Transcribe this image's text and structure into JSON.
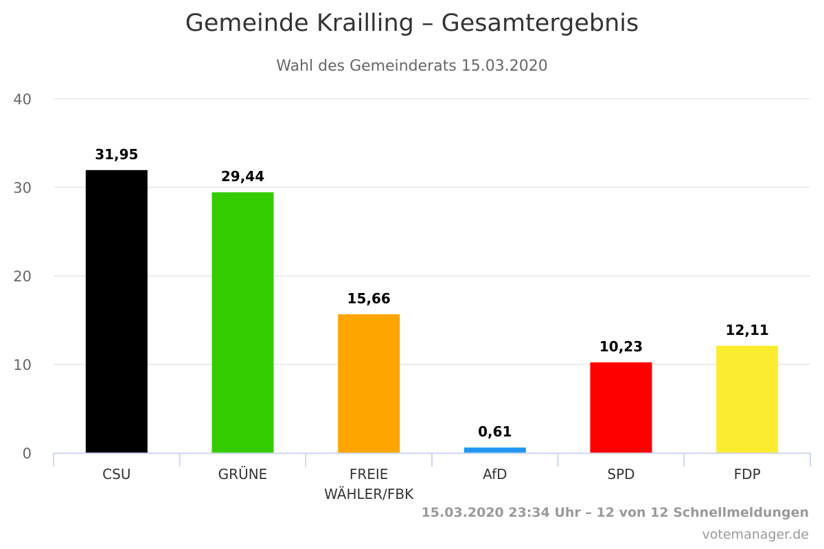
{
  "chart_data": {
    "type": "bar",
    "title": "Gemeinde Krailling – Gesamtergebnis",
    "subtitle": "Wahl des Gemeinderats 15.03.2020",
    "categories": [
      "CSU",
      "GRÜNE",
      "FREIE WÄHLER/FBK",
      "AfD",
      "SPD",
      "FDP"
    ],
    "category_lines": [
      [
        "CSU"
      ],
      [
        "GRÜNE"
      ],
      [
        "FREIE",
        "WÄHLER/FBK"
      ],
      [
        "AfD"
      ],
      [
        "SPD"
      ],
      [
        "FDP"
      ]
    ],
    "values": [
      31.95,
      29.44,
      15.66,
      0.61,
      10.23,
      12.11
    ],
    "value_labels": [
      "31,95",
      "29,44",
      "15,66",
      "0,61",
      "10,23",
      "12,11"
    ],
    "colors": [
      "#000000",
      "#33cc00",
      "#ffa500",
      "#2196f3",
      "#ff0000",
      "#fbec30"
    ],
    "ylim": [
      0,
      40
    ],
    "yticks": [
      0,
      10,
      20,
      30,
      40
    ],
    "xlabel": "",
    "ylabel": "",
    "grid": true,
    "legend": "none"
  },
  "footer": {
    "note": "15.03.2020 23:34 Uhr – 12 von 12 Schnellmeldungen",
    "credit": "votemanager.de"
  }
}
